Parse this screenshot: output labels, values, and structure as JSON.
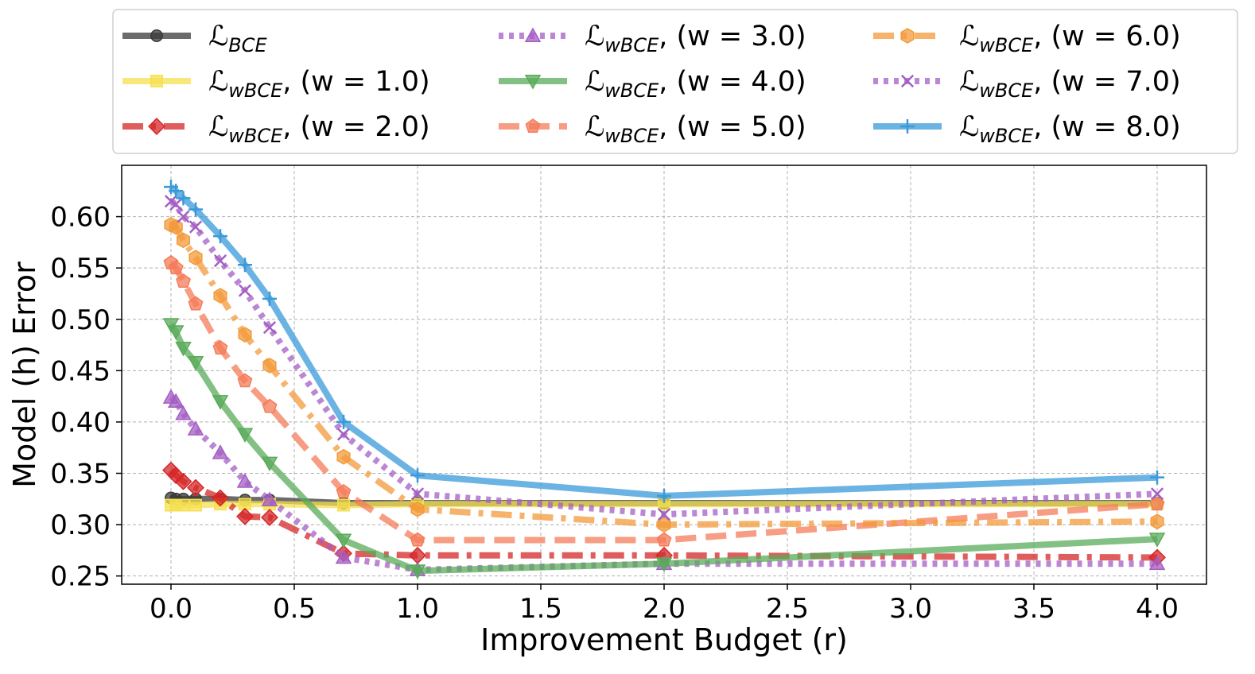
{
  "chart_data": {
    "type": "line",
    "xlabel": "Improvement Budget (r)",
    "ylabel": "Model (h) Error",
    "xlim": [
      -0.2,
      4.2
    ],
    "ylim": [
      0.242,
      0.65
    ],
    "xticks": [
      "0.0",
      "0.5",
      "1.0",
      "1.5",
      "2.0",
      "2.5",
      "3.0",
      "3.5",
      "4.0"
    ],
    "xtick_values": [
      0,
      0.5,
      1,
      1.5,
      2,
      2.5,
      3,
      3.5,
      4
    ],
    "yticks": [
      "0.25",
      "0.30",
      "0.35",
      "0.40",
      "0.45",
      "0.50",
      "0.55",
      "0.60"
    ],
    "ytick_values": [
      0.25,
      0.3,
      0.35,
      0.4,
      0.45,
      0.5,
      0.55,
      0.6
    ],
    "grid": true,
    "legend_position": "top",
    "x": [
      0,
      0.02,
      0.05,
      0.1,
      0.2,
      0.3,
      0.4,
      0.7,
      1.0,
      2.0,
      4.0
    ],
    "series": [
      {
        "name": "BCE",
        "label_main": "ℒ",
        "label_sub": "BCE",
        "label_suffix": "",
        "color": "#3a3a3a",
        "dash": "solid",
        "marker": "circle",
        "values": [
          0.326,
          0.325,
          0.325,
          0.325,
          0.325,
          0.324,
          0.324,
          0.321,
          0.321,
          0.321,
          0.321
        ]
      },
      {
        "name": "wBCE w1",
        "label_main": "ℒ",
        "label_sub": "wBCE",
        "label_suffix": ", (w = 1.0)",
        "color": "#f5e050",
        "dash": "solid",
        "marker": "square",
        "values": [
          0.319,
          0.319,
          0.319,
          0.319,
          0.32,
          0.32,
          0.32,
          0.319,
          0.32,
          0.32,
          0.32
        ]
      },
      {
        "name": "wBCE w2",
        "label_main": "ℒ",
        "label_sub": "wBCE",
        "label_suffix": ", (w = 2.0)",
        "color": "#d62728",
        "dash": "dashdot",
        "marker": "diamond",
        "values": [
          0.353,
          0.348,
          0.342,
          0.336,
          0.326,
          0.308,
          0.307,
          0.272,
          0.27,
          0.27,
          0.268
        ]
      },
      {
        "name": "wBCE w3",
        "label_main": "ℒ",
        "label_sub": "wBCE",
        "label_suffix": ", (w = 3.0)",
        "color": "#a45ec4",
        "dash": "dotted",
        "marker": "triangle-up",
        "values": [
          0.424,
          0.42,
          0.408,
          0.393,
          0.37,
          0.342,
          0.324,
          0.268,
          0.256,
          0.262,
          0.262
        ]
      },
      {
        "name": "wBCE w4",
        "label_main": "ℒ",
        "label_sub": "wBCE",
        "label_suffix": ", (w = 4.0)",
        "color": "#5aab5a",
        "dash": "solid",
        "marker": "triangle-down",
        "values": [
          0.495,
          0.488,
          0.472,
          0.458,
          0.42,
          0.388,
          0.36,
          0.285,
          0.255,
          0.262,
          0.286
        ]
      },
      {
        "name": "wBCE w5",
        "label_main": "ℒ",
        "label_sub": "wBCE",
        "label_suffix": ", (w = 5.0)",
        "color": "#f47c5a",
        "dash": "dashed",
        "marker": "pentagon",
        "values": [
          0.555,
          0.55,
          0.537,
          0.515,
          0.472,
          0.44,
          0.415,
          0.332,
          0.285,
          0.285,
          0.32
        ]
      },
      {
        "name": "wBCE w6",
        "label_main": "ℒ",
        "label_sub": "wBCE",
        "label_suffix": ", (w = 6.0)",
        "color": "#f39a3a",
        "dash": "dashdot",
        "marker": "hexagon",
        "values": [
          0.592,
          0.59,
          0.577,
          0.56,
          0.523,
          0.485,
          0.455,
          0.366,
          0.315,
          0.3,
          0.303
        ]
      },
      {
        "name": "wBCE w7",
        "label_main": "ℒ",
        "label_sub": "wBCE",
        "label_suffix": ", (w = 7.0)",
        "color": "#a45ec4",
        "dash": "dotted",
        "marker": "x",
        "values": [
          0.615,
          0.612,
          0.6,
          0.59,
          0.557,
          0.528,
          0.492,
          0.388,
          0.33,
          0.31,
          0.33
        ]
      },
      {
        "name": "wBCE w8",
        "label_main": "ℒ",
        "label_sub": "wBCE",
        "label_suffix": ", (w = 8.0)",
        "color": "#3a9ad9",
        "dash": "solid",
        "marker": "plus",
        "values": [
          0.629,
          0.625,
          0.618,
          0.607,
          0.581,
          0.553,
          0.52,
          0.4,
          0.348,
          0.328,
          0.346
        ]
      }
    ]
  }
}
